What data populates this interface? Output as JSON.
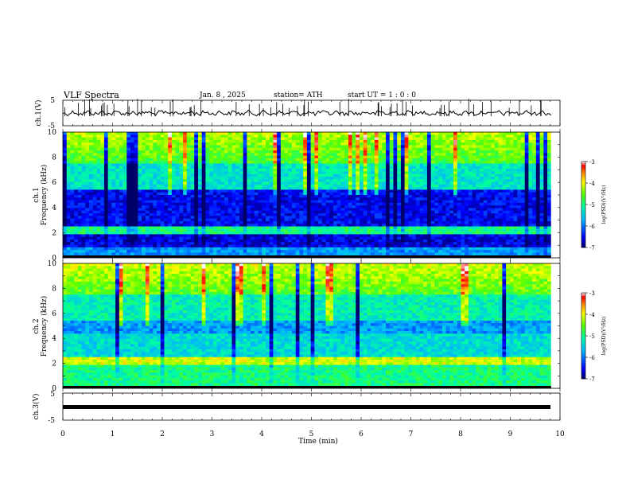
{
  "header": {
    "title": "VLF  Spectra",
    "date": "Jan.  8  , 2025",
    "station": "station= ATH",
    "start": "start  UT  =   1  : 0   : 0"
  },
  "colorbar": {
    "label": "log(PSD)(V²/Hz)",
    "ticks": [
      "-3",
      "-4",
      "-5",
      "-6",
      "-7"
    ],
    "colors": [
      "#00006a",
      "#0000ff",
      "#00b4ff",
      "#00ffa0",
      "#5aff00",
      "#ffff00",
      "#ff9000",
      "#ff0000",
      "#ffffff"
    ]
  },
  "chart_data": [
    {
      "type": "line",
      "panel": "ch1-waveform",
      "ylabel": "ch.1(V)",
      "yticks": [
        "5",
        "-5"
      ],
      "ylim": [
        -5,
        5
      ],
      "xlim": [
        0,
        10
      ],
      "series": [
        {
          "values_description_level": -0.6,
          "noise": "high"
        }
      ],
      "color": "#000000"
    },
    {
      "type": "heatmap",
      "panel": "ch1-spectrogram",
      "ylabel_1": "ch.1",
      "ylabel_2": "Frequency  (kHz)",
      "yticks": [
        "0",
        "2",
        "4",
        "6",
        "8",
        "10"
      ],
      "ylim": [
        0,
        10
      ],
      "xlim": [
        0,
        9.82
      ],
      "zlim": [
        -7,
        -3
      ]
    },
    {
      "type": "heatmap",
      "panel": "ch2-spectrogram",
      "ylabel_1": "ch.2",
      "ylabel_2": "Frequency  (kHz)",
      "yticks": [
        "0",
        "2",
        "4",
        "6",
        "8",
        "10"
      ],
      "ylim": [
        0,
        10
      ],
      "xlim": [
        0,
        9.82
      ],
      "zlim": [
        -7,
        -3
      ]
    },
    {
      "type": "line",
      "panel": "ch3-waveform",
      "ylabel": "ch.3(V)",
      "yticks": [
        "5",
        "-5"
      ],
      "ylim": [
        -5,
        5
      ],
      "xlim": [
        0,
        9.82
      ],
      "series": [
        {
          "constant_value": -0.5
        }
      ],
      "color": "#000000"
    }
  ],
  "xaxis": {
    "label": "Time  (min)",
    "ticks": [
      "0",
      "1",
      "2",
      "3",
      "4",
      "5",
      "6",
      "7",
      "8",
      "9",
      "10"
    ],
    "xlim": [
      0,
      10
    ]
  }
}
